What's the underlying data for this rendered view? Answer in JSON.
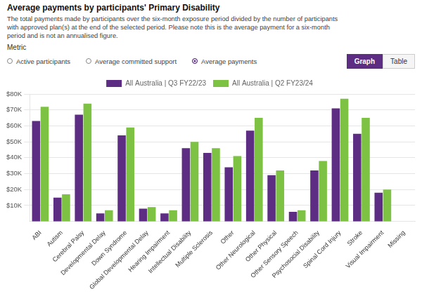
{
  "chart_data": {
    "type": "bar",
    "title": "Average payments by participants' Primary Disability",
    "subtitle": [
      "The total payments made by participants over the six-month exposure period divided by the number of participants",
      "with approved plan(s) at the end of the selected period. Please note this is the average payment for a six-month",
      "period and is not an annualised figure."
    ],
    "annotations": [
      "Metric",
      "Active participants",
      "Average committed support",
      "Average payments",
      "Graph",
      "Table"
    ],
    "categories": [
      "ABI",
      "Autism",
      "Cerebral Palsy",
      "Developmental Delay",
      "Down Syndrome",
      "Global Developmental Delay",
      "Hearing Impairment",
      "Intellectual Disability",
      "Multiple Sclerosis",
      "Other",
      "Other Neurological",
      "Other Physical",
      "Other Sensory Speech",
      "Psychosocial Disability",
      "Spinal Cord Injury",
      "Stroke",
      "Visual Impairment",
      "Missing"
    ],
    "series": [
      {
        "name": "All Australia | Q3 FY22/23",
        "color": "#5C2D82",
        "values": [
          63000,
          15000,
          67000,
          5000,
          54000,
          8000,
          5000,
          46000,
          43000,
          34000,
          57000,
          29000,
          6000,
          32000,
          71000,
          55000,
          18000,
          0
        ]
      },
      {
        "name": "All Australia | Q2 FY23/24",
        "color": "#7DC242",
        "values": [
          72000,
          17000,
          74000,
          7000,
          59000,
          9000,
          7000,
          50000,
          46000,
          41000,
          65000,
          32000,
          7000,
          38000,
          77000,
          65000,
          20000,
          0
        ]
      }
    ],
    "ylim": [
      0,
      80000
    ],
    "yticks": [
      {
        "value": 10000,
        "label": "$10K"
      },
      {
        "value": 20000,
        "label": "$20K"
      },
      {
        "value": 30000,
        "label": "$30K"
      },
      {
        "value": 40000,
        "label": "$40K"
      },
      {
        "value": 50000,
        "label": "$50K"
      },
      {
        "value": 60000,
        "label": "$60K"
      },
      {
        "value": 70000,
        "label": "$70K"
      },
      {
        "value": 80000,
        "label": "$80K"
      }
    ],
    "grid": true,
    "legend": "top"
  }
}
